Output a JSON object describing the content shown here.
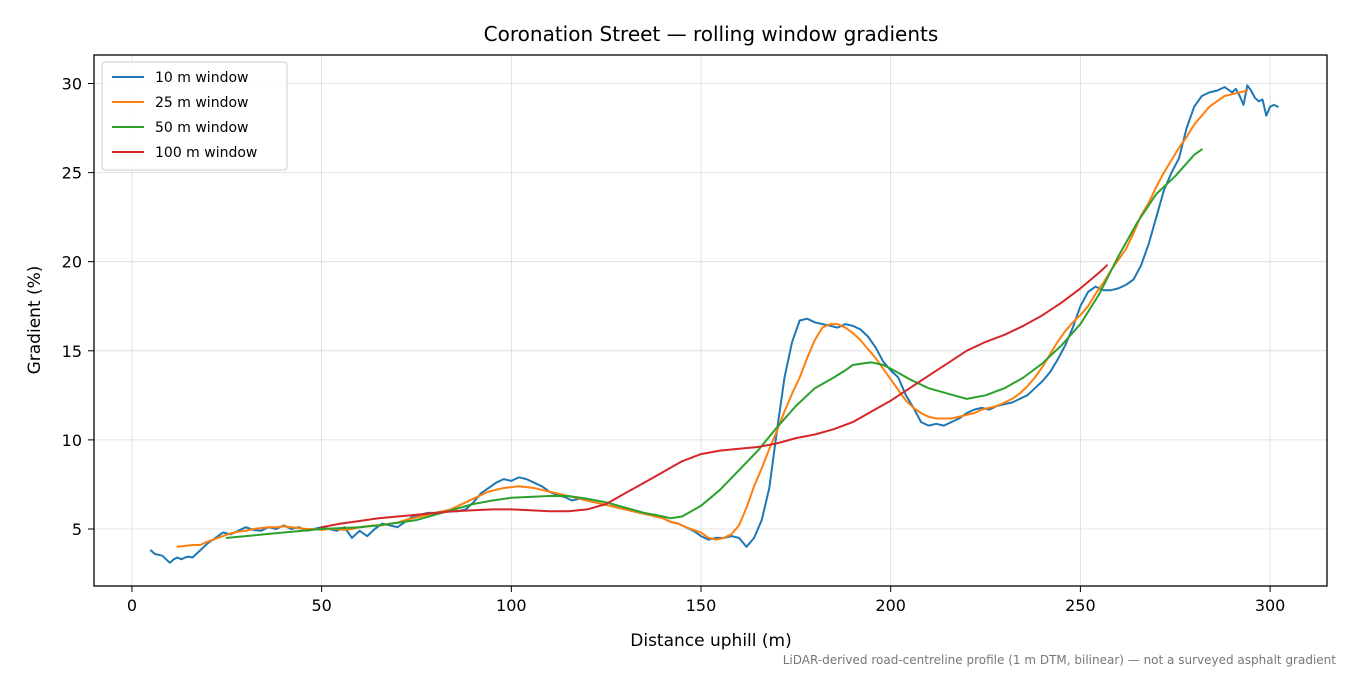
{
  "chart_data": {
    "type": "line",
    "title": "Coronation Street — rolling window gradients",
    "xlabel": "Distance uphill (m)",
    "ylabel": "Gradient (%)",
    "xlim": [
      -10,
      315
    ],
    "ylim": [
      1.8,
      31.6
    ],
    "xticks": [
      0,
      50,
      100,
      150,
      200,
      250,
      300
    ],
    "yticks": [
      5,
      10,
      15,
      20,
      25,
      30
    ],
    "grid": true,
    "legend_position": "top-left",
    "footnote": "LiDAR-derived road-centreline profile (1 m DTM, bilinear) — not a surveyed asphalt gradient",
    "series": [
      {
        "name": "10 m window",
        "color": "#1f77b4",
        "x": [
          5,
          6,
          7,
          8,
          9,
          10,
          11,
          12,
          13,
          14,
          15,
          16,
          17,
          18,
          20,
          22,
          24,
          26,
          28,
          30,
          32,
          34,
          36,
          38,
          40,
          42,
          44,
          46,
          48,
          50,
          52,
          54,
          56,
          58,
          60,
          62,
          64,
          66,
          68,
          70,
          72,
          74,
          76,
          78,
          80,
          82,
          84,
          86,
          88,
          90,
          92,
          94,
          96,
          98,
          100,
          102,
          104,
          106,
          108,
          110,
          112,
          114,
          116,
          118,
          120,
          122,
          124,
          126,
          128,
          130,
          132,
          134,
          136,
          138,
          140,
          142,
          144,
          146,
          148,
          150,
          152,
          154,
          156,
          158,
          160,
          162,
          164,
          166,
          168,
          170,
          172,
          174,
          176,
          178,
          180,
          182,
          184,
          186,
          188,
          190,
          192,
          194,
          196,
          198,
          200,
          202,
          204,
          206,
          208,
          210,
          212,
          214,
          216,
          218,
          220,
          222,
          224,
          226,
          228,
          230,
          232,
          234,
          236,
          238,
          240,
          242,
          244,
          246,
          248,
          250,
          252,
          254,
          256,
          258,
          260,
          262,
          264,
          266,
          268,
          270,
          272,
          274,
          276,
          278,
          280,
          282,
          284,
          286,
          288,
          290,
          291,
          292,
          293,
          294,
          295,
          296,
          297,
          298,
          299,
          300,
          301,
          302
        ],
        "y": [
          3.8,
          3.6,
          3.55,
          3.5,
          3.3,
          3.1,
          3.3,
          3.4,
          3.3,
          3.4,
          3.45,
          3.4,
          3.6,
          3.8,
          4.2,
          4.5,
          4.8,
          4.7,
          4.9,
          5.1,
          4.95,
          4.9,
          5.1,
          5.0,
          5.2,
          5.0,
          5.1,
          4.9,
          5.0,
          5.1,
          5.0,
          4.9,
          5.1,
          4.5,
          4.9,
          4.6,
          5.0,
          5.3,
          5.2,
          5.1,
          5.4,
          5.7,
          5.8,
          5.9,
          5.9,
          6.0,
          6.0,
          6.0,
          6.1,
          6.5,
          7.0,
          7.3,
          7.6,
          7.8,
          7.7,
          7.9,
          7.8,
          7.6,
          7.4,
          7.1,
          6.9,
          6.8,
          6.6,
          6.7,
          6.6,
          6.5,
          6.4,
          6.3,
          6.2,
          6.1,
          6.0,
          5.9,
          5.8,
          5.8,
          5.6,
          5.4,
          5.3,
          5.1,
          4.9,
          4.6,
          4.4,
          4.5,
          4.5,
          4.6,
          4.5,
          4.0,
          4.5,
          5.5,
          7.3,
          10.5,
          13.5,
          15.5,
          16.7,
          16.8,
          16.6,
          16.5,
          16.4,
          16.3,
          16.5,
          16.4,
          16.2,
          15.8,
          15.2,
          14.4,
          13.9,
          13.5,
          12.5,
          11.8,
          11.0,
          10.8,
          10.9,
          10.8,
          11.0,
          11.2,
          11.5,
          11.7,
          11.8,
          11.7,
          11.9,
          12.0,
          12.1,
          12.3,
          12.5,
          12.9,
          13.3,
          13.8,
          14.5,
          15.3,
          16.3,
          17.5,
          18.3,
          18.6,
          18.4,
          18.4,
          18.5,
          18.7,
          19.0,
          19.8,
          21.0,
          22.5,
          24.0,
          25.0,
          25.8,
          27.5,
          28.7,
          29.3,
          29.5,
          29.6,
          29.8,
          29.5,
          29.7,
          29.3,
          28.8,
          29.9,
          29.6,
          29.2,
          29.0,
          29.1,
          28.2,
          28.7,
          28.8,
          28.7
        ]
      },
      {
        "name": "25 m window",
        "color": "#ff7f0e",
        "x": [
          12,
          14,
          16,
          18,
          20,
          22,
          24,
          26,
          28,
          30,
          32,
          34,
          36,
          38,
          40,
          42,
          44,
          46,
          48,
          50,
          52,
          54,
          56,
          58,
          60,
          62,
          64,
          66,
          68,
          70,
          72,
          74,
          76,
          78,
          80,
          82,
          84,
          86,
          88,
          90,
          92,
          94,
          96,
          98,
          100,
          102,
          104,
          106,
          108,
          110,
          112,
          114,
          116,
          118,
          120,
          122,
          124,
          126,
          128,
          130,
          132,
          134,
          136,
          138,
          140,
          142,
          144,
          146,
          148,
          150,
          152,
          154,
          156,
          158,
          160,
          162,
          164,
          166,
          168,
          170,
          172,
          174,
          176,
          178,
          180,
          182,
          184,
          186,
          188,
          190,
          192,
          194,
          196,
          198,
          200,
          202,
          204,
          206,
          208,
          210,
          212,
          214,
          216,
          218,
          220,
          222,
          224,
          226,
          228,
          230,
          232,
          234,
          236,
          238,
          240,
          242,
          244,
          246,
          248,
          250,
          252,
          254,
          256,
          258,
          260,
          262,
          264,
          266,
          268,
          270,
          272,
          274,
          276,
          278,
          280,
          282,
          284,
          286,
          288,
          290,
          292,
          294
        ],
        "y": [
          4.0,
          4.05,
          4.1,
          4.1,
          4.3,
          4.45,
          4.6,
          4.75,
          4.85,
          4.9,
          5.0,
          5.05,
          5.1,
          5.1,
          5.15,
          5.1,
          5.05,
          5.0,
          5.0,
          4.95,
          5.0,
          5.0,
          4.95,
          5.0,
          5.1,
          5.15,
          5.2,
          5.2,
          5.3,
          5.35,
          5.5,
          5.6,
          5.7,
          5.8,
          5.9,
          6.0,
          6.1,
          6.3,
          6.5,
          6.7,
          6.9,
          7.1,
          7.2,
          7.3,
          7.35,
          7.4,
          7.35,
          7.3,
          7.2,
          7.1,
          7.0,
          6.9,
          6.8,
          6.7,
          6.6,
          6.5,
          6.4,
          6.3,
          6.2,
          6.1,
          6.0,
          5.9,
          5.8,
          5.7,
          5.6,
          5.4,
          5.3,
          5.1,
          4.95,
          4.8,
          4.5,
          4.4,
          4.5,
          4.7,
          5.2,
          6.2,
          7.4,
          8.4,
          9.5,
          10.5,
          11.6,
          12.6,
          13.5,
          14.6,
          15.6,
          16.3,
          16.5,
          16.5,
          16.3,
          16.0,
          15.6,
          15.1,
          14.6,
          14.0,
          13.4,
          12.8,
          12.2,
          11.8,
          11.5,
          11.3,
          11.2,
          11.2,
          11.2,
          11.3,
          11.4,
          11.5,
          11.7,
          11.8,
          11.9,
          12.1,
          12.3,
          12.6,
          13.0,
          13.5,
          14.1,
          14.8,
          15.5,
          16.1,
          16.6,
          17.0,
          17.5,
          18.2,
          18.8,
          19.5,
          20.1,
          20.7,
          21.6,
          22.6,
          23.3,
          24.2,
          25.0,
          25.7,
          26.4,
          27.0,
          27.7,
          28.2,
          28.7,
          29.0,
          29.3,
          29.4,
          29.5,
          29.6
        ]
      },
      {
        "name": "50 m window",
        "color": "#2ca02c",
        "x": [
          25,
          30,
          35,
          40,
          45,
          50,
          55,
          60,
          65,
          70,
          75,
          80,
          85,
          90,
          95,
          100,
          105,
          110,
          115,
          120,
          125,
          130,
          135,
          140,
          142,
          145,
          150,
          155,
          160,
          165,
          170,
          175,
          180,
          185,
          188,
          190,
          193,
          195,
          198,
          200,
          205,
          210,
          215,
          220,
          225,
          230,
          235,
          240,
          245,
          250,
          255,
          260,
          265,
          270,
          275,
          280,
          282
        ],
        "y": [
          4.5,
          4.6,
          4.7,
          4.8,
          4.9,
          5.0,
          5.05,
          5.1,
          5.2,
          5.35,
          5.5,
          5.8,
          6.1,
          6.4,
          6.6,
          6.75,
          6.8,
          6.85,
          6.85,
          6.7,
          6.5,
          6.2,
          5.9,
          5.7,
          5.6,
          5.7,
          6.3,
          7.2,
          8.3,
          9.4,
          10.7,
          11.9,
          12.9,
          13.5,
          13.9,
          14.2,
          14.3,
          14.35,
          14.2,
          14.0,
          13.4,
          12.9,
          12.6,
          12.3,
          12.5,
          12.9,
          13.5,
          14.3,
          15.3,
          16.5,
          18.2,
          20.3,
          22.2,
          23.8,
          24.8,
          26.0,
          26.3
        ]
      },
      {
        "name": "100 m window",
        "color": "#d62728",
        "x": [
          50,
          55,
          60,
          65,
          70,
          75,
          80,
          85,
          90,
          95,
          100,
          105,
          110,
          115,
          120,
          125,
          130,
          135,
          140,
          145,
          150,
          155,
          160,
          165,
          170,
          175,
          180,
          185,
          190,
          195,
          200,
          205,
          210,
          215,
          220,
          225,
          230,
          235,
          240,
          245,
          250,
          255,
          257
        ],
        "y": [
          5.1,
          5.3,
          5.45,
          5.6,
          5.7,
          5.8,
          5.9,
          6.0,
          6.05,
          6.1,
          6.1,
          6.05,
          6.0,
          6.0,
          6.1,
          6.4,
          7.0,
          7.6,
          8.2,
          8.8,
          9.2,
          9.4,
          9.5,
          9.6,
          9.8,
          10.1,
          10.3,
          10.6,
          11.0,
          11.6,
          12.2,
          12.9,
          13.6,
          14.3,
          15.0,
          15.5,
          15.9,
          16.4,
          17.0,
          17.7,
          18.5,
          19.4,
          19.8
        ]
      }
    ]
  }
}
